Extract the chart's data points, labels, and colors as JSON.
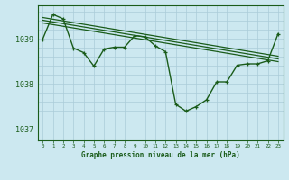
{
  "xlabel": "Graphe pression niveau de la mer (hPa)",
  "x_ticks": [
    0,
    1,
    2,
    3,
    4,
    5,
    6,
    7,
    8,
    9,
    10,
    11,
    12,
    13,
    14,
    15,
    16,
    17,
    18,
    19,
    20,
    21,
    22,
    23
  ],
  "ylim": [
    1036.75,
    1039.75
  ],
  "yticks": [
    1037,
    1038,
    1039
  ],
  "background_color": "#cce8f0",
  "grid_color": "#aaccd8",
  "line_color": "#1a5c1a",
  "main_series": [
    1039.0,
    1039.55,
    1039.45,
    1038.8,
    1038.7,
    1038.4,
    1038.78,
    1038.82,
    1038.82,
    1039.08,
    1039.05,
    1038.85,
    1038.72,
    1037.55,
    1037.4,
    1037.5,
    1037.65,
    1038.05,
    1038.05,
    1038.42,
    1038.45,
    1038.45,
    1038.52,
    1039.12
  ],
  "trend_lines": [
    {
      "x0": 0,
      "y0": 1039.48,
      "x1": 23,
      "y1": 1038.62
    },
    {
      "x0": 0,
      "y0": 1039.42,
      "x1": 23,
      "y1": 1038.56
    },
    {
      "x0": 0,
      "y0": 1039.36,
      "x1": 23,
      "y1": 1038.5
    }
  ]
}
